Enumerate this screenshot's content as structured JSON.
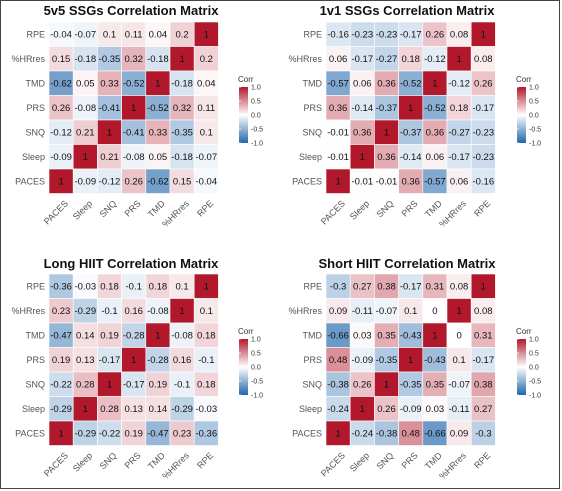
{
  "scale": {
    "low_color": "#2166ac",
    "mid_color": "#ffffff",
    "high_color": "#b2182b",
    "legend_title": "Corr",
    "legend_ticks": [
      "1.0",
      "0.5",
      "0.0",
      "-0.5",
      "-1.0"
    ]
  },
  "chart_data": [
    {
      "type": "heatmap",
      "title": "5v5 SSGs Correlation Matrix",
      "rows": [
        "RPE",
        "%HRres",
        "TMD",
        "PRS",
        "SNQ",
        "Sleep",
        "PACES"
      ],
      "columns": [
        "PACES",
        "Sleep",
        "SNQ",
        "PRS",
        "TMD",
        "%HRres",
        "RPE"
      ],
      "labels": [
        [
          "-0.04",
          "-0.07",
          "0.1",
          "0.11",
          "0.04",
          "0.2",
          "1"
        ],
        [
          "0.15",
          "-0.18",
          "-0.35",
          "0.32",
          "-0.18",
          "1",
          "0.2"
        ],
        [
          "-0.62",
          "0.05",
          "0.33",
          "-0.52",
          "1",
          "-0.18",
          "0.04"
        ],
        [
          "0.26",
          "-0.08",
          "-0.41",
          "1",
          "-0.52",
          "0.32",
          "0.11"
        ],
        [
          "-0.12",
          "0.21",
          "1",
          "-0.41",
          "0.33",
          "-0.35",
          "0.1"
        ],
        [
          "-0.09",
          "1",
          "0.21",
          "-0.08",
          "0.05",
          "-0.18",
          "-0.07"
        ],
        [
          "1",
          "-0.09",
          "-0.12",
          "0.26",
          "-0.62",
          "0.15",
          "-0.04"
        ]
      ],
      "legend": "right",
      "range": [
        -1,
        1
      ]
    },
    {
      "type": "heatmap",
      "title": "1v1 SSGs Correlation Matrix",
      "rows": [
        "RPE",
        "%HRres",
        "TMD",
        "PRS",
        "SNQ",
        "Sleep",
        "PACES"
      ],
      "columns": [
        "PACES",
        "Sleep",
        "SNQ",
        "PRS",
        "TMD",
        "%HRres",
        "RPE"
      ],
      "labels": [
        [
          "-0.16",
          "-0.23",
          "-0.23",
          "-0.17",
          "0.26",
          "0.08",
          "1"
        ],
        [
          "0.06",
          "-0.17",
          "-0.27",
          "0.18",
          "-0.12",
          "1",
          "0.08"
        ],
        [
          "-0.57",
          "0.06",
          "0.36",
          "-0.52",
          "1",
          "-0.12",
          "0.26"
        ],
        [
          "0.36",
          "-0.14",
          "-0.37",
          "1",
          "-0.52",
          "0.18",
          "-0.17"
        ],
        [
          "-0.01",
          "0.36",
          "1",
          "-0.37",
          "0.36",
          "-0.27",
          "-0.23"
        ],
        [
          "-0.01",
          "1",
          "0.36",
          "-0.14",
          "0.06",
          "-0.17",
          "-0.23"
        ],
        [
          "1",
          "-0.01",
          "-0.01",
          "0.36",
          "-0.57",
          "0.06",
          "-0.16"
        ]
      ],
      "legend": "right",
      "range": [
        -1,
        1
      ]
    },
    {
      "type": "heatmap",
      "title": "Long HIIT Correlation Matrix",
      "rows": [
        "RPE",
        "%HRres",
        "TMD",
        "PRS",
        "SNQ",
        "Sleep",
        "PACES"
      ],
      "columns": [
        "PACES",
        "Sleep",
        "SNQ",
        "PRS",
        "TMD",
        "%HRres",
        "RPE"
      ],
      "labels": [
        [
          "-0.36",
          "-0.03",
          "0.18",
          "-0.1",
          "0.18",
          "0.1",
          "1"
        ],
        [
          "0.23",
          "-0.29",
          "-0.1",
          "0.16",
          "-0.08",
          "1",
          "0.1"
        ],
        [
          "-0.47",
          "0.14",
          "0.19",
          "-0.28",
          "1",
          "-0.08",
          "0.18"
        ],
        [
          "0.19",
          "0.13",
          "-0.17",
          "1",
          "-0.28",
          "0.16",
          "-0.1"
        ],
        [
          "-0.22",
          "0.28",
          "1",
          "-0.17",
          "0.19",
          "-0.1",
          "0.18"
        ],
        [
          "-0.29",
          "1",
          "0.28",
          "0.13",
          "0.14",
          "-0.29",
          "-0.03"
        ],
        [
          "1",
          "-0.29",
          "-0.22",
          "0.19",
          "-0.47",
          "0.23",
          "-0.36"
        ]
      ],
      "legend": "right",
      "range": [
        -1,
        1
      ]
    },
    {
      "type": "heatmap",
      "title": "Short HIIT Correlation Matrix",
      "rows": [
        "RPE",
        "%HRres",
        "TMD",
        "PRS",
        "SNQ",
        "Sleep",
        "PACES"
      ],
      "columns": [
        "PACES",
        "Sleep",
        "SNQ",
        "PRS",
        "TMD",
        "%HRres",
        "RPE"
      ],
      "labels": [
        [
          "-0.3",
          "0.27",
          "0.38",
          "-0.17",
          "0.31",
          "0.08",
          "1"
        ],
        [
          "0.09",
          "-0.11",
          "-0.07",
          "0.1",
          "0",
          "1",
          "0.08"
        ],
        [
          "-0.66",
          "0.03",
          "0.35",
          "-0.43",
          "1",
          "0",
          "0.31"
        ],
        [
          "0.48",
          "-0.09",
          "-0.35",
          "1",
          "-0.43",
          "0.1",
          "-0.17"
        ],
        [
          "-0.38",
          "0.26",
          "1",
          "-0.35",
          "0.35",
          "-0.07",
          "0.38"
        ],
        [
          "-0.24",
          "1",
          "0.26",
          "-0.09",
          "0.03",
          "-0.11",
          "0.27"
        ],
        [
          "1",
          "-0.24",
          "-0.38",
          "0.48",
          "-0.66",
          "0.09",
          "-0.3"
        ]
      ],
      "legend": "right",
      "range": [
        -1,
        1
      ]
    }
  ]
}
